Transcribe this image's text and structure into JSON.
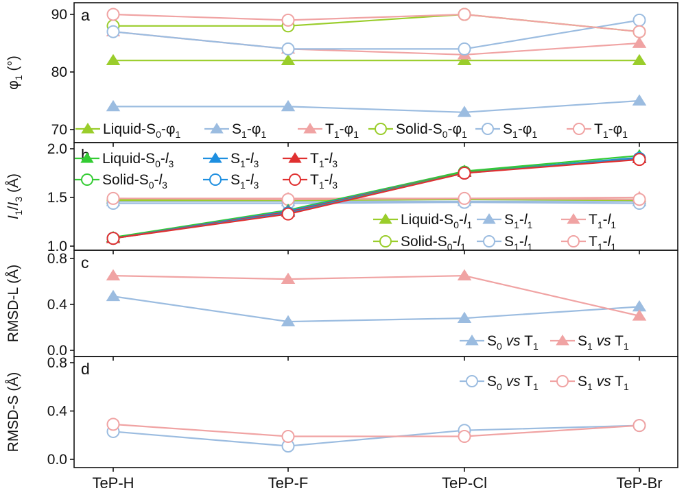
{
  "chart_data": {
    "type": "line",
    "categories": [
      "TeP-H",
      "TeP-F",
      "TeP-Cl",
      "TeP-Br"
    ],
    "colors": {
      "green": "#9ACD2B",
      "blue": "#9BBCE0",
      "pink": "#F0A3A3",
      "brightGreen": "#33CC33",
      "brightBlue": "#1E8FE0",
      "red": "#E03030"
    },
    "panels": [
      {
        "letter": "a",
        "ylabel": "φ1 (°)",
        "ylabel_main": "φ",
        "ylabel_sub": "1",
        "ylabel_unit": " (°)",
        "ylim": [
          68,
          92
        ],
        "yticks": [
          70,
          80,
          90
        ],
        "ytick_labels": [
          "70",
          "80",
          "90"
        ],
        "series": [
          {
            "name": "Liquid-S0-φ1",
            "marker": "triangle",
            "color": "#9ACD2B",
            "values": [
              82,
              82,
              82,
              82
            ]
          },
          {
            "name": "S1-φ1 (liquid)",
            "marker": "triangle",
            "color": "#9BBCE0",
            "values": [
              74,
              74,
              73,
              75
            ]
          },
          {
            "name": "T1-φ1 (liquid)",
            "marker": "triangle",
            "color": "#F0A3A3",
            "values": [
              87,
              84,
              83,
              85
            ]
          },
          {
            "name": "Solid-S0-φ1",
            "marker": "circle",
            "color": "#9ACD2B",
            "values": [
              88,
              88,
              90,
              87
            ]
          },
          {
            "name": "S1-φ1 (solid)",
            "marker": "circle",
            "color": "#9BBCE0",
            "values": [
              87,
              84,
              84,
              89
            ]
          },
          {
            "name": "T1-φ1 (solid)",
            "marker": "circle",
            "color": "#F0A3A3",
            "values": [
              90,
              89,
              90,
              87
            ]
          }
        ],
        "legends": [
          {
            "marker": "triangle",
            "color": "#9ACD2B",
            "parts": [
              [
                "Liquid-S",
                ""
              ],
              [
                "0",
                "sub"
              ],
              [
                "-φ",
                ""
              ],
              [
                "1",
                "sub"
              ]
            ]
          },
          {
            "marker": "triangle",
            "color": "#9BBCE0",
            "parts": [
              [
                "S",
                ""
              ],
              [
                "1",
                "sub"
              ],
              [
                "-φ",
                ""
              ],
              [
                "1",
                "sub"
              ]
            ]
          },
          {
            "marker": "triangle",
            "color": "#F0A3A3",
            "parts": [
              [
                "T",
                ""
              ],
              [
                "1",
                "sub"
              ],
              [
                "-φ",
                ""
              ],
              [
                "1",
                "sub"
              ]
            ]
          },
          {
            "marker": "circle",
            "color": "#9ACD2B",
            "parts": [
              [
                "Solid-S",
                ""
              ],
              [
                "0",
                "sub"
              ],
              [
                "-φ",
                ""
              ],
              [
                "1",
                "sub"
              ]
            ]
          },
          {
            "marker": "circle",
            "color": "#9BBCE0",
            "parts": [
              [
                "S",
                ""
              ],
              [
                "1",
                "sub"
              ],
              [
                "-φ",
                ""
              ],
              [
                "1",
                "sub"
              ]
            ]
          },
          {
            "marker": "circle",
            "color": "#F0A3A3",
            "parts": [
              [
                "T",
                ""
              ],
              [
                "1",
                "sub"
              ],
              [
                "-φ",
                ""
              ],
              [
                "1",
                "sub"
              ]
            ]
          }
        ]
      },
      {
        "letter": "b",
        "ylabel": "I1/I3 (Å)",
        "ylim": [
          0.97,
          2.05
        ],
        "yticks": [
          1.0,
          1.5,
          2.0
        ],
        "ytick_labels": [
          "1.0",
          "1.5",
          "2.0"
        ],
        "series": [
          {
            "name": "Liquid-S0-l1",
            "marker": "triangle",
            "color": "#9ACD2B",
            "values": [
              1.48,
              1.48,
              1.48,
              1.48
            ]
          },
          {
            "name": "S1-l1 (liquid)",
            "marker": "triangle",
            "color": "#9BBCE0",
            "values": [
              1.46,
              1.46,
              1.46,
              1.46
            ]
          },
          {
            "name": "T1-l1 (liquid)",
            "marker": "triangle",
            "color": "#F0A3A3",
            "values": [
              1.49,
              1.49,
              1.49,
              1.5
            ]
          },
          {
            "name": "Solid-S0-l1",
            "marker": "circle",
            "color": "#9ACD2B",
            "values": [
              1.47,
              1.47,
              1.48,
              1.47
            ]
          },
          {
            "name": "S1-l1 (solid)",
            "marker": "circle",
            "color": "#9BBCE0",
            "values": [
              1.44,
              1.44,
              1.45,
              1.44
            ]
          },
          {
            "name": "T1-l1 (solid)",
            "marker": "circle",
            "color": "#F0A3A3",
            "values": [
              1.49,
              1.48,
              1.49,
              1.48
            ]
          },
          {
            "name": "Liquid-S0-l3",
            "marker": "triangle",
            "color": "#33CC33",
            "values": [
              1.09,
              1.37,
              1.77,
              1.93
            ]
          },
          {
            "name": "S1-l3 (liquid)",
            "marker": "triangle",
            "color": "#1E8FE0",
            "values": [
              1.08,
              1.36,
              1.76,
              1.91
            ]
          },
          {
            "name": "T1-l3 (liquid)",
            "marker": "triangle",
            "color": "#E03030",
            "values": [
              1.08,
              1.35,
              1.76,
              1.9
            ]
          },
          {
            "name": "Solid-S0-l3",
            "marker": "circle",
            "color": "#33CC33",
            "values": [
              1.08,
              1.34,
              1.76,
              1.9
            ]
          },
          {
            "name": "S1-l3 (solid)",
            "marker": "circle",
            "color": "#1E8FE0",
            "values": [
              1.08,
              1.34,
              1.75,
              1.9
            ]
          },
          {
            "name": "T1-l3 (solid)",
            "marker": "circle",
            "color": "#E03030",
            "values": [
              1.08,
              1.33,
              1.75,
              1.89
            ]
          }
        ],
        "legends": [
          {
            "marker": "triangle",
            "color": "#33CC33",
            "parts": [
              [
                "Liquid-S",
                ""
              ],
              [
                "0",
                "sub"
              ],
              [
                "-",
                ""
              ],
              [
                "l",
                "it"
              ],
              [
                "3",
                "sub"
              ]
            ]
          },
          {
            "marker": "triangle",
            "color": "#1E8FE0",
            "parts": [
              [
                "S",
                ""
              ],
              [
                "1",
                "sub"
              ],
              [
                "-",
                ""
              ],
              [
                "l",
                "it"
              ],
              [
                "3",
                "sub"
              ]
            ]
          },
          {
            "marker": "triangle",
            "color": "#E03030",
            "parts": [
              [
                "T",
                ""
              ],
              [
                "1",
                "sub"
              ],
              [
                "-",
                ""
              ],
              [
                "l",
                "it"
              ],
              [
                "3",
                "sub"
              ]
            ]
          },
          {
            "marker": "circle",
            "color": "#33CC33",
            "parts": [
              [
                "Solid-S",
                ""
              ],
              [
                "0",
                "sub"
              ],
              [
                "-",
                ""
              ],
              [
                "l",
                "it"
              ],
              [
                "3",
                "sub"
              ]
            ]
          },
          {
            "marker": "circle",
            "color": "#1E8FE0",
            "parts": [
              [
                "S",
                ""
              ],
              [
                "1",
                "sub"
              ],
              [
                "-",
                ""
              ],
              [
                "l",
                "it"
              ],
              [
                "3",
                "sub"
              ]
            ]
          },
          {
            "marker": "circle",
            "color": "#E03030",
            "parts": [
              [
                "T",
                ""
              ],
              [
                "1",
                "sub"
              ],
              [
                "-",
                ""
              ],
              [
                "l",
                "it"
              ],
              [
                "3",
                "sub"
              ]
            ]
          },
          {
            "marker": "triangle",
            "color": "#9ACD2B",
            "parts": [
              [
                "Liquid-S",
                ""
              ],
              [
                "0",
                "sub"
              ],
              [
                "-",
                ""
              ],
              [
                "l",
                "it"
              ],
              [
                "1",
                "sub"
              ]
            ]
          },
          {
            "marker": "triangle",
            "color": "#9BBCE0",
            "parts": [
              [
                "S",
                ""
              ],
              [
                "1",
                "sub"
              ],
              [
                "-",
                ""
              ],
              [
                "l",
                "it"
              ],
              [
                "1",
                "sub"
              ]
            ]
          },
          {
            "marker": "triangle",
            "color": "#F0A3A3",
            "parts": [
              [
                "T",
                ""
              ],
              [
                "1",
                "sub"
              ],
              [
                "-",
                ""
              ],
              [
                "l",
                "it"
              ],
              [
                "1",
                "sub"
              ]
            ]
          },
          {
            "marker": "circle",
            "color": "#9ACD2B",
            "parts": [
              [
                "Solid-S",
                ""
              ],
              [
                "0",
                "sub"
              ],
              [
                "-",
                ""
              ],
              [
                "l",
                "it"
              ],
              [
                "1",
                "sub"
              ]
            ]
          },
          {
            "marker": "circle",
            "color": "#9BBCE0",
            "parts": [
              [
                "S",
                ""
              ],
              [
                "1",
                "sub"
              ],
              [
                "-",
                ""
              ],
              [
                "l",
                "it"
              ],
              [
                "1",
                "sub"
              ]
            ]
          },
          {
            "marker": "circle",
            "color": "#F0A3A3",
            "parts": [
              [
                "T",
                ""
              ],
              [
                "1",
                "sub"
              ],
              [
                "-",
                ""
              ],
              [
                "l",
                "it"
              ],
              [
                "1",
                "sub"
              ]
            ]
          }
        ]
      },
      {
        "letter": "c",
        "ylabel": "RMSD-L (Å)",
        "ylim": [
          -0.03,
          0.85
        ],
        "yticks": [
          0.0,
          0.4,
          0.8
        ],
        "ytick_labels": [
          "0.0",
          "0.4",
          "0.8"
        ],
        "series": [
          {
            "name": "S0 vs T1",
            "marker": "triangle",
            "color": "#9BBCE0",
            "values": [
              0.47,
              0.25,
              0.28,
              0.38
            ]
          },
          {
            "name": "S1 vs T1",
            "marker": "triangle",
            "color": "#F0A3A3",
            "values": [
              0.65,
              0.62,
              0.65,
              0.3
            ]
          }
        ],
        "legends": [
          {
            "marker": "triangle",
            "color": "#9BBCE0",
            "parts": [
              [
                "S",
                ""
              ],
              [
                "0",
                "sub"
              ],
              [
                " ",
                ""
              ],
              [
                "vs",
                "it"
              ],
              [
                " T",
                ""
              ],
              [
                "1",
                "sub"
              ]
            ]
          },
          {
            "marker": "triangle",
            "color": "#F0A3A3",
            "parts": [
              [
                "S",
                ""
              ],
              [
                "1",
                "sub"
              ],
              [
                " ",
                ""
              ],
              [
                "vs",
                "it"
              ],
              [
                " T",
                ""
              ],
              [
                "1",
                "sub"
              ]
            ]
          }
        ]
      },
      {
        "letter": "d",
        "ylabel": "RMSD-S (Å)",
        "ylim": [
          -0.04,
          0.86
        ],
        "yticks": [
          0.0,
          0.4,
          0.8
        ],
        "ytick_labels": [
          "0.0",
          "0.4",
          "0.8"
        ],
        "series": [
          {
            "name": "S0 vs T1",
            "marker": "circle",
            "color": "#9BBCE0",
            "values": [
              0.23,
              0.11,
              0.24,
              0.28
            ]
          },
          {
            "name": "S1 vs T1",
            "marker": "circle",
            "color": "#F0A3A3",
            "values": [
              0.29,
              0.19,
              0.19,
              0.28
            ]
          }
        ],
        "legends": [
          {
            "marker": "circle",
            "color": "#9BBCE0",
            "parts": [
              [
                "S",
                ""
              ],
              [
                "0",
                "sub"
              ],
              [
                " ",
                ""
              ],
              [
                "vs",
                "it"
              ],
              [
                " T",
                ""
              ],
              [
                "1",
                "sub"
              ]
            ]
          },
          {
            "marker": "circle",
            "color": "#F0A3A3",
            "parts": [
              [
                "S",
                ""
              ],
              [
                "1",
                "sub"
              ],
              [
                " ",
                ""
              ],
              [
                "vs",
                "it"
              ],
              [
                " T",
                ""
              ],
              [
                "1",
                "sub"
              ]
            ]
          }
        ]
      }
    ]
  }
}
